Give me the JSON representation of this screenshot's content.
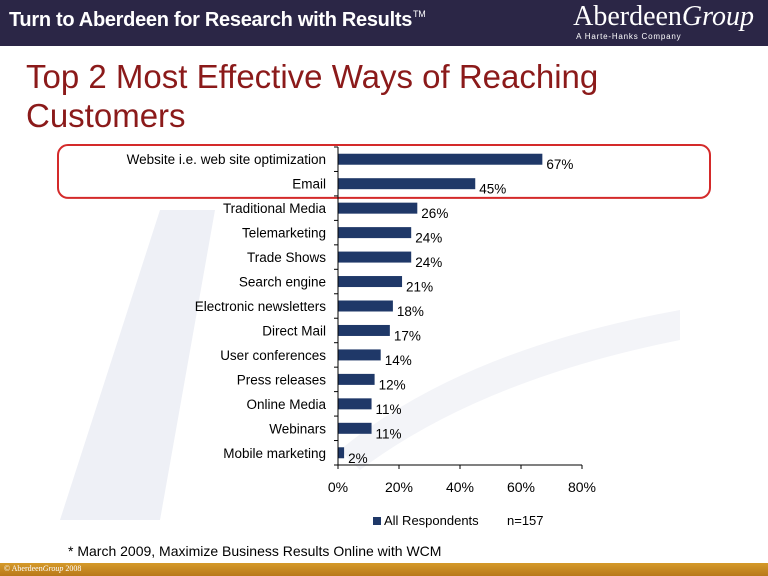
{
  "banner": {
    "tagline": "Turn to Aberdeen for Research with Results",
    "trademark": "TM",
    "logo_word1": "Aberdeen",
    "logo_word2": "Group",
    "logo_sub": "A Harte-Hanks Company"
  },
  "slide": {
    "title": "Top 2 Most Effective Ways of Reaching Customers",
    "footnote": "* March 2009, Maximize Business Results Online with WCM",
    "copyright_prefix": "© Aberdeen",
    "copyright_group": "Group",
    "copyright_year": "2008"
  },
  "colors": {
    "bar": "#1f3868",
    "highlight": "#d42a2a",
    "title": "#8b1a1a",
    "banner": "#2b2646"
  },
  "chart_data": {
    "type": "bar",
    "orientation": "horizontal",
    "categories": [
      "Website i.e. web site optimization",
      "Email",
      "Traditional Media",
      "Telemarketing",
      "Trade Shows",
      "Search engine",
      "Electronic newsletters",
      "Direct Mail",
      "User conferences",
      "Press releases",
      "Online Media",
      "Webinars",
      "Mobile marketing"
    ],
    "series": [
      {
        "name": "All Respondents",
        "values": [
          67,
          45,
          26,
          24,
          24,
          21,
          18,
          17,
          14,
          12,
          11,
          11,
          2
        ]
      }
    ],
    "value_labels": [
      "67%",
      "45%",
      "26%",
      "24%",
      "24%",
      "21%",
      "18%",
      "17%",
      "14%",
      "12%",
      "11%",
      "11%",
      "2%"
    ],
    "xlim": [
      0,
      80
    ],
    "xticks": [
      0,
      20,
      40,
      60,
      80
    ],
    "xtick_labels": [
      "0%",
      "20%",
      "40%",
      "60%",
      "80%"
    ],
    "highlighted_categories": [
      "Website i.e. web site optimization",
      "Email"
    ],
    "legend": {
      "position": "bottom",
      "entry": "All Respondents",
      "note": "n=157"
    },
    "grid": false
  }
}
